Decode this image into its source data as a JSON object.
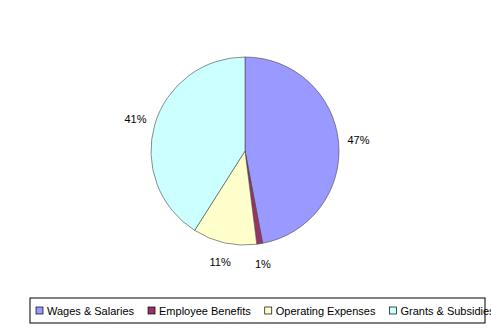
{
  "chart_data": {
    "type": "pie",
    "categories": [
      "Wages & Salaries",
      "Employee Benefits",
      "Operating Expenses",
      "Grants & Subsidies"
    ],
    "values": [
      47,
      1,
      11,
      41
    ],
    "value_labels": [
      "47%",
      "1%",
      "11%",
      "41%"
    ],
    "colors": [
      "#9999ff",
      "#993366",
      "#ffffcc",
      "#ccffff"
    ],
    "data_labels": true,
    "legend": "bottom"
  }
}
